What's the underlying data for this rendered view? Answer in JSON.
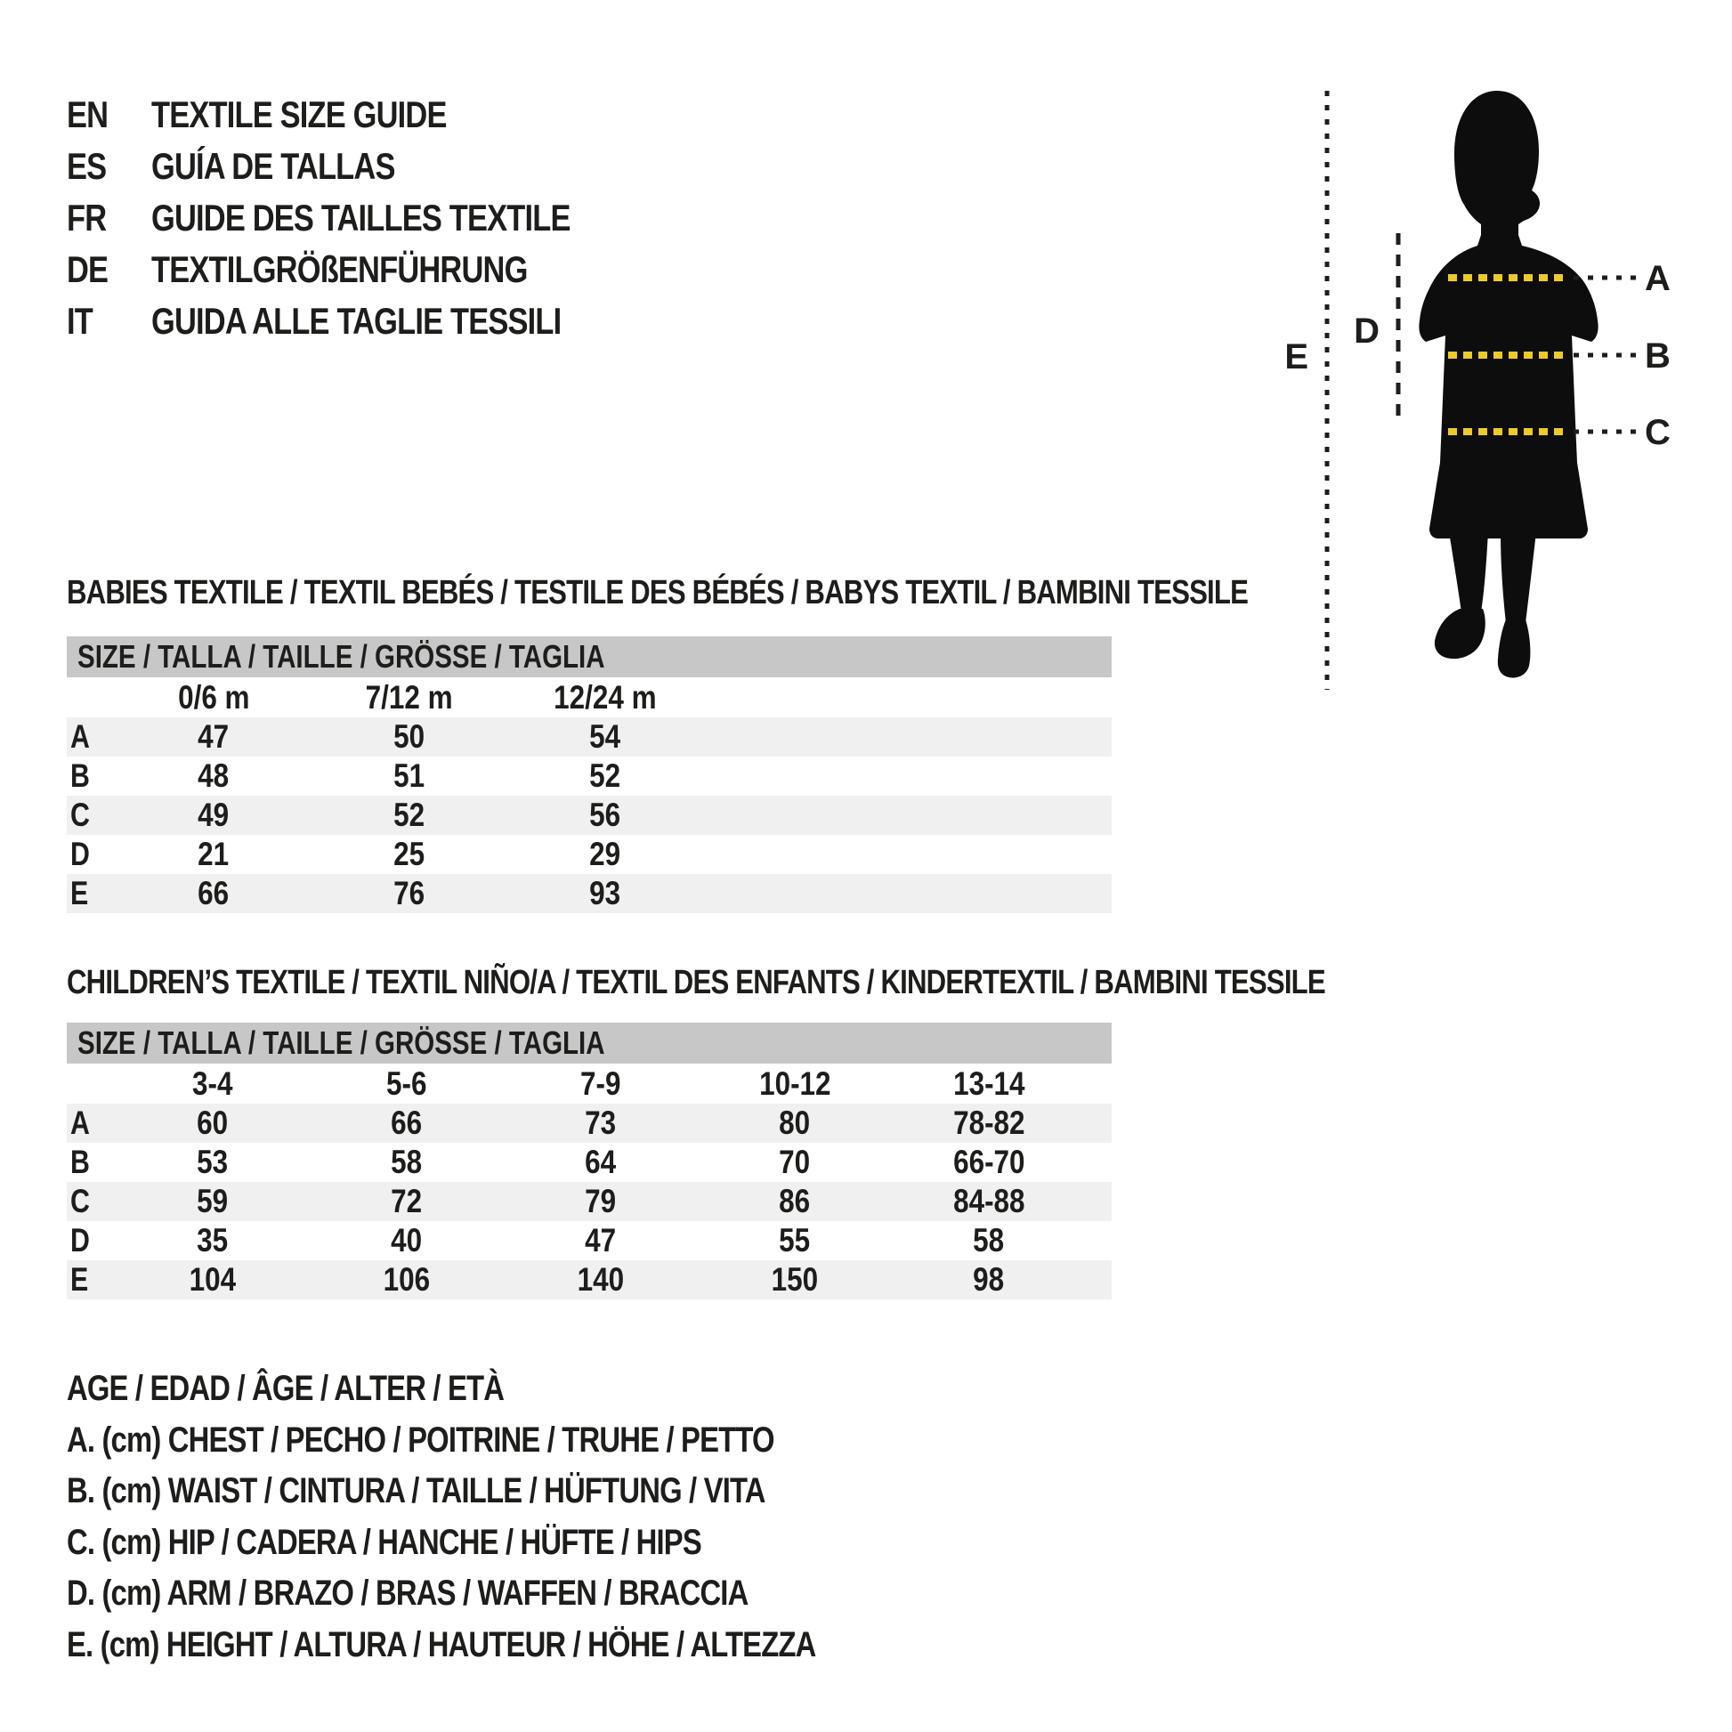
{
  "page": {
    "background": "#ffffff",
    "text_color": "#1d1d1b"
  },
  "languages": {
    "items": [
      {
        "code": "EN",
        "title": "TEXTILE SIZE GUIDE"
      },
      {
        "code": "ES",
        "title": "GUÍA DE TALLAS"
      },
      {
        "code": "FR",
        "title": "GUIDE DES TAILLES TEXTILE"
      },
      {
        "code": "DE",
        "title": "TEXTILGRÖßENFÜHRUNG"
      },
      {
        "code": "IT",
        "title": "GUIDA ALLE TAGLIE TESSILI"
      }
    ]
  },
  "figure": {
    "silhouette": "child-silhouette",
    "measure_lines": [
      {
        "id": "A",
        "label": "A"
      },
      {
        "id": "B",
        "label": "B"
      },
      {
        "id": "C",
        "label": "C"
      }
    ],
    "side_labels": {
      "d": "D",
      "e": "E"
    },
    "colors": {
      "silhouette": "#0d0d0d",
      "measure_yellow": "#eecb23",
      "line_dark": "#1d1d1b"
    }
  },
  "babies_table": {
    "section_title": "BABIES TEXTILE / TEXTIL BEBÉS / TESTILE DES BÉBÉS / BABYS TEXTIL / BAMBINI TESSILE",
    "size_header": "SIZE / TALLA / TAILLE / GRÖSSE / TAGLIA",
    "columns": [
      "0/6 m",
      "7/12 m",
      "12/24 m"
    ],
    "rows": [
      {
        "label": "A",
        "values": [
          "47",
          "50",
          "54"
        ]
      },
      {
        "label": "B",
        "values": [
          "48",
          "51",
          "52"
        ]
      },
      {
        "label": "C",
        "values": [
          "49",
          "52",
          "56"
        ]
      },
      {
        "label": "D",
        "values": [
          "21",
          "25",
          "29"
        ]
      },
      {
        "label": "E",
        "values": [
          "66",
          "76",
          "93"
        ]
      }
    ]
  },
  "children_table": {
    "section_title": "CHILDREN’S TEXTILE / TEXTIL NIÑO/A / TEXTIL DES ENFANTS / KINDERTEXTIL / BAMBINI TESSILE",
    "size_header": "SIZE / TALLA / TAILLE / GRÖSSE / TAGLIA",
    "columns": [
      "3-4",
      "5-6",
      "7-9",
      "10-12",
      "13-14"
    ],
    "rows": [
      {
        "label": "A",
        "values": [
          "60",
          "66",
          "73",
          "80",
          "78-82"
        ]
      },
      {
        "label": "B",
        "values": [
          "53",
          "58",
          "64",
          "70",
          "66-70"
        ]
      },
      {
        "label": "C",
        "values": [
          "59",
          "72",
          "79",
          "86",
          "84-88"
        ]
      },
      {
        "label": "D",
        "values": [
          "35",
          "40",
          "47",
          "55",
          "58"
        ]
      },
      {
        "label": "E",
        "values": [
          "104",
          "106",
          "140",
          "150",
          "98"
        ]
      }
    ]
  },
  "legend": {
    "lines": [
      "AGE / EDAD / ÂGE / ALTER / ETÀ",
      "A. (cm) CHEST / PECHO / POITRINE / TRUHE / PETTO",
      "B. (cm) WAIST / CINTURA / TAILLE / HÜFTUNG / VITA",
      "C. (cm) HIP / CADERA / HANCHE / HÜFTE / HIPS",
      "D. (cm) ARM / BRAZO / BRAS / WAFFEN / BRACCIA",
      "E. (cm) HEIGHT / ALTURA / HAUTEUR / HÖHE / ALTEZZA"
    ]
  }
}
